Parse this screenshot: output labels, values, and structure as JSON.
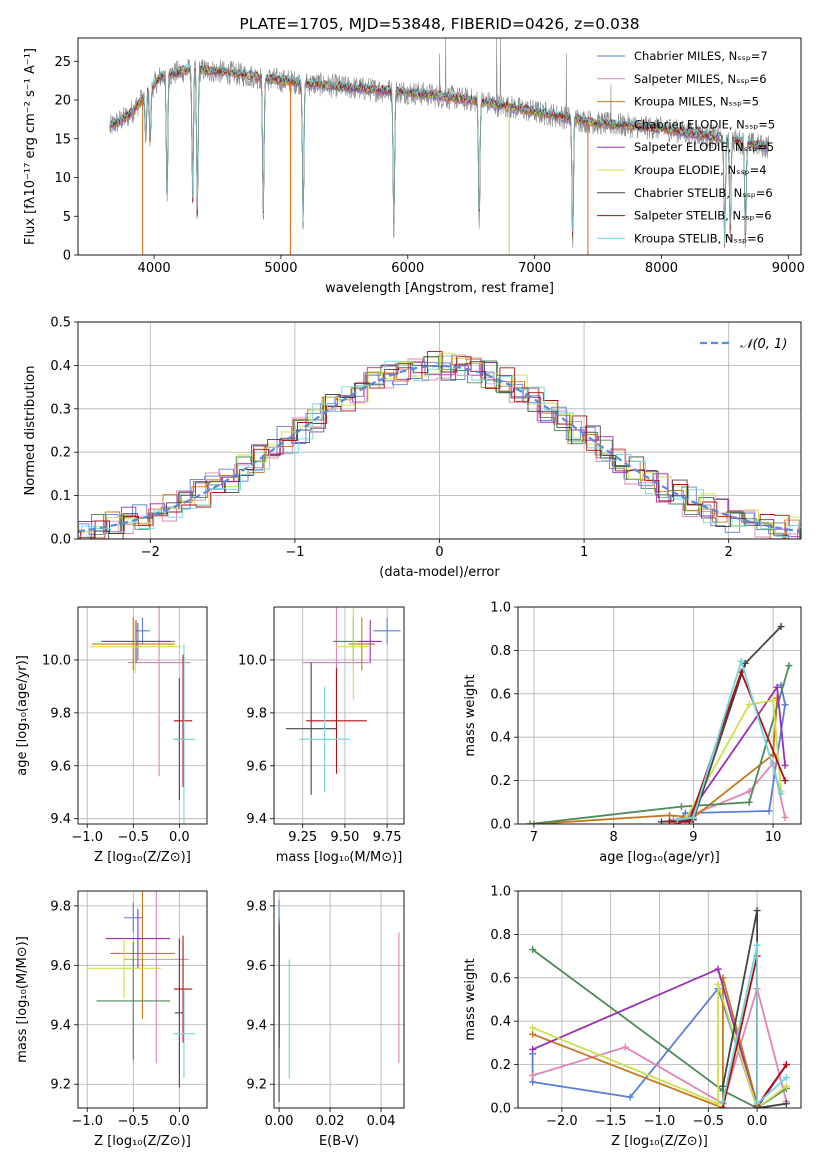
{
  "chart_data": [
    {
      "id": "spectrum",
      "type": "line",
      "title": "PLATE=1705, MJD=53848, FIBERID=0426, z=0.038",
      "xlabel": "wavelength [Angstrom, rest frame]",
      "ylabel": "Flux [fλ10⁻¹⁷ erg cm⁻² s⁻¹ A⁻¹]",
      "xlim": [
        3400,
        9100
      ],
      "ylim": [
        0,
        28
      ],
      "xticks": [
        4000,
        5000,
        6000,
        7000,
        8000,
        9000
      ],
      "yticks": [
        0,
        5,
        10,
        15,
        20,
        25
      ],
      "grid": false,
      "legend_position": "top-right",
      "continuum": [
        [
          3650,
          16.5
        ],
        [
          3800,
          18
        ],
        [
          3950,
          21
        ],
        [
          4050,
          23
        ],
        [
          4300,
          24
        ],
        [
          4600,
          23.5
        ],
        [
          5000,
          22.5
        ],
        [
          5300,
          22
        ],
        [
          5600,
          21.5
        ],
        [
          6000,
          21
        ],
        [
          6500,
          20
        ],
        [
          7000,
          18.5
        ],
        [
          7500,
          17
        ],
        [
          8000,
          16.3
        ],
        [
          8500,
          15
        ],
        [
          8800,
          14
        ]
      ],
      "dips": [
        [
          3934,
          6
        ],
        [
          3969,
          7
        ],
        [
          4102,
          16
        ],
        [
          4304,
          17
        ],
        [
          4341,
          19
        ],
        [
          4861,
          18
        ],
        [
          5175,
          18.5
        ],
        [
          5890,
          18.5
        ],
        [
          6563,
          16
        ],
        [
          7300,
          16
        ],
        [
          8498,
          13.5
        ],
        [
          8542,
          12.5
        ],
        [
          8662,
          12.8
        ]
      ],
      "spikes": [
        [
          6250,
          26
        ],
        [
          6300,
          28
        ],
        [
          6700,
          28
        ],
        [
          6730,
          28
        ],
        [
          7250,
          26
        ],
        [
          7600,
          22
        ]
      ],
      "series": [
        {
          "name": "Chabrier MILES, Nₛₛₚ=7",
          "color": "#5b7fd6"
        },
        {
          "name": "Salpeter MILES, Nₛₛₚ=6",
          "color": "#e084b8"
        },
        {
          "name": "Kroupa MILES, Nₛₛₚ=5",
          "color": "#c8781c"
        },
        {
          "name": "Chabrier ELODIE, Nₛₛₚ=5",
          "color": "#4f8a57"
        },
        {
          "name": "Salpeter ELODIE, Nₛₛₚ=5",
          "color": "#9a2fb5"
        },
        {
          "name": "Kroupa ELODIE, Nₛₛₚ=4",
          "color": "#cbe04a"
        },
        {
          "name": "Chabrier STELIB, Nₛₛₚ=6",
          "color": "#444444"
        },
        {
          "name": "Salpeter STELIB, Nₛₛₚ=6",
          "color": "#b01010"
        },
        {
          "name": "Kroupa STELIB, Nₛₛₚ=6",
          "color": "#6fd6dd"
        }
      ],
      "drops": [
        {
          "x": 3910,
          "color": "#c8781c"
        },
        {
          "x": 5075,
          "color": "#e07020"
        },
        {
          "x": 6800,
          "color": "#cbe04a"
        },
        {
          "x": 7420,
          "color": "#e07020"
        }
      ],
      "observed_data_color": "#888888"
    },
    {
      "id": "residuals",
      "type": "histogram",
      "xlabel": "(data-model)/error",
      "ylabel": "Normed distribution",
      "xlim": [
        -2.5,
        2.5
      ],
      "ylim": [
        0,
        0.5
      ],
      "xticks": [
        -2,
        -1,
        0,
        1,
        2
      ],
      "yticks": [
        0.0,
        0.1,
        0.2,
        0.3,
        0.4,
        0.5
      ],
      "grid": true,
      "legend_position": "top-right",
      "legend": "𝒩(0, 1)",
      "gaussian_color": "#5b8ad6",
      "bin_width": 0.1
    },
    {
      "id": "age-Z",
      "type": "scatter",
      "xlabel": "Z [log₁₀(Z/Z⊙)]",
      "ylabel": "age  [log₁₀(age/yr)]",
      "xlim": [
        -1.1,
        0.3
      ],
      "ylim": [
        9.38,
        10.2
      ],
      "xticks": [
        -1.0,
        -0.5,
        0.0
      ],
      "yticks": [
        9.4,
        9.6,
        9.8,
        10.0
      ],
      "grid": true,
      "points": [
        {
          "x": -0.4,
          "xerr": 0.08,
          "y": 10.11,
          "yerr": 0.05,
          "color": "#5b7fd6"
        },
        {
          "x": -0.22,
          "xerr": 0.34,
          "y": 9.99,
          "yerr": 0.43,
          "color": "#e084b8"
        },
        {
          "x": -0.5,
          "xerr": 0.45,
          "y": 10.06,
          "yerr": 0.1,
          "color": "#c8781c"
        },
        {
          "x": -0.45,
          "xerr": 0.4,
          "y": 10.07,
          "yerr": 0.07,
          "color": "#4f8a57"
        },
        {
          "x": -0.47,
          "xerr": 0.37,
          "y": 10.07,
          "yerr": 0.08,
          "color": "#9a2fb5"
        },
        {
          "x": -0.48,
          "xerr": 0.5,
          "y": 10.05,
          "yerr": 0.1,
          "color": "#cbe04a"
        },
        {
          "x": 0.0,
          "xerr": 0.03,
          "y": 9.7,
          "yerr": 0.23,
          "color": "#444444"
        },
        {
          "x": 0.04,
          "xerr": 0.1,
          "y": 9.77,
          "yerr": 0.25,
          "color": "#b01010"
        },
        {
          "x": 0.05,
          "xerr": 0.12,
          "y": 9.7,
          "yerr": 0.36,
          "color": "#6fd6dd"
        }
      ]
    },
    {
      "id": "age-mass",
      "type": "scatter",
      "xlabel": "mass [log₁₀(M/M⊙)]",
      "ylabel": "",
      "xlim": [
        9.08,
        9.85
      ],
      "ylim": [
        9.38,
        10.2
      ],
      "xticks": [
        9.25,
        9.5,
        9.75
      ],
      "yticks": [
        9.4,
        9.6,
        9.8,
        10.0
      ],
      "grid": true,
      "points": [
        {
          "x": 9.75,
          "xerr": 0.08,
          "y": 10.11,
          "yerr": 0.05,
          "color": "#5b7fd6"
        },
        {
          "x": 9.45,
          "xerr": 0.2,
          "y": 9.99,
          "yerr": 0.25,
          "color": "#e084b8"
        },
        {
          "x": 9.6,
          "xerr": 0.08,
          "y": 10.06,
          "yerr": 0.1,
          "color": "#c8781c"
        },
        {
          "x": 9.55,
          "xerr": 0.12,
          "y": 10.07,
          "yerr": 0.09,
          "color": "#4f8a57"
        },
        {
          "x": 9.65,
          "xerr": 0.07,
          "y": 10.07,
          "yerr": 0.08,
          "color": "#9a2fb5"
        },
        {
          "x": 9.55,
          "xerr": 0.1,
          "y": 10.05,
          "yerr": 0.2,
          "color": "#cbe04a"
        },
        {
          "x": 9.3,
          "xerr": 0.15,
          "y": 9.74,
          "yerr": 0.25,
          "color": "#444444"
        },
        {
          "x": 9.45,
          "xerr": 0.18,
          "y": 9.77,
          "yerr": 0.2,
          "color": "#b01010"
        },
        {
          "x": 9.38,
          "xerr": 0.15,
          "y": 9.7,
          "yerr": 0.2,
          "color": "#6fd6dd"
        }
      ]
    },
    {
      "id": "weight-age",
      "type": "line",
      "xlabel": "age  [log₁₀(age/yr)]",
      "ylabel": "mass weight",
      "xlim": [
        6.8,
        10.35
      ],
      "ylim": [
        0,
        1.0
      ],
      "xticks": [
        7,
        8,
        9,
        10
      ],
      "yticks": [
        0.0,
        0.2,
        0.4,
        0.6,
        0.8,
        1.0
      ],
      "grid": true,
      "series": [
        {
          "color": "#5b7fd6",
          "points": [
            [
              8.8,
              0.01
            ],
            [
              8.9,
              0.05
            ],
            [
              9.95,
              0.06
            ],
            [
              10.15,
              0.55
            ],
            [
              10.1,
              0.64
            ]
          ]
        },
        {
          "color": "#e084b8",
          "points": [
            [
              8.75,
              0.02
            ],
            [
              8.9,
              0.03
            ],
            [
              9.7,
              0.15
            ],
            [
              10.0,
              0.28
            ],
            [
              10.15,
              0.03
            ]
          ]
        },
        {
          "color": "#c8781c",
          "points": [
            [
              7.0,
              0.0
            ],
            [
              8.7,
              0.04
            ],
            [
              9.0,
              0.03
            ],
            [
              10.0,
              0.32
            ],
            [
              10.05,
              0.58
            ]
          ]
        },
        {
          "color": "#4f8a57",
          "points": [
            [
              6.95,
              0.0
            ],
            [
              8.85,
              0.08
            ],
            [
              9.7,
              0.1
            ],
            [
              10.2,
              0.73
            ]
          ]
        },
        {
          "color": "#9a2fb5",
          "points": [
            [
              8.8,
              0.0
            ],
            [
              8.9,
              0.02
            ],
            [
              10.05,
              0.63
            ],
            [
              10.15,
              0.27
            ]
          ]
        },
        {
          "color": "#cbe04a",
          "points": [
            [
              8.9,
              0.02
            ],
            [
              9.7,
              0.55
            ],
            [
              10.0,
              0.57
            ],
            [
              10.1,
              0.15
            ]
          ]
        },
        {
          "color": "#444444",
          "points": [
            [
              8.6,
              0.01
            ],
            [
              9.0,
              0.02
            ],
            [
              9.65,
              0.74
            ],
            [
              10.1,
              0.91
            ]
          ]
        },
        {
          "color": "#b01010",
          "points": [
            [
              8.7,
              0.01
            ],
            [
              8.95,
              0.01
            ],
            [
              9.6,
              0.7
            ],
            [
              10.15,
              0.2
            ]
          ]
        },
        {
          "color": "#6fd6dd",
          "points": [
            [
              8.8,
              0.02
            ],
            [
              9.0,
              0.03
            ],
            [
              9.6,
              0.75
            ],
            [
              10.1,
              0.14
            ]
          ]
        }
      ]
    },
    {
      "id": "mass-Z",
      "type": "scatter",
      "xlabel": "Z [log₁₀(Z/Z⊙)]",
      "ylabel": "mass [log₁₀(M/M⊙)]",
      "xlim": [
        -1.1,
        0.3
      ],
      "ylim": [
        9.12,
        9.85
      ],
      "xticks": [
        -1.0,
        -0.5,
        0.0
      ],
      "yticks": [
        9.2,
        9.4,
        9.6,
        9.8
      ],
      "grid": true,
      "points": [
        {
          "x": -0.5,
          "xerr": 0.1,
          "y": 9.76,
          "yerr": 0.05,
          "color": "#5b7fd6"
        },
        {
          "x": -0.25,
          "xerr": 0.35,
          "y": 9.62,
          "yerr": 0.35,
          "color": "#e084b8"
        },
        {
          "x": -0.4,
          "xerr": 0.35,
          "y": 9.64,
          "yerr": 0.22,
          "color": "#c8781c"
        },
        {
          "x": -0.5,
          "xerr": 0.4,
          "y": 9.48,
          "yerr": 0.2,
          "color": "#4f8a57"
        },
        {
          "x": -0.45,
          "xerr": 0.35,
          "y": 9.69,
          "yerr": 0.1,
          "color": "#9a2fb5"
        },
        {
          "x": -0.6,
          "xerr": 0.4,
          "y": 9.59,
          "yerr": 0.1,
          "color": "#cbe04a"
        },
        {
          "x": 0.0,
          "xerr": 0.05,
          "y": 9.44,
          "yerr": 0.25,
          "color": "#444444"
        },
        {
          "x": 0.04,
          "xerr": 0.1,
          "y": 9.52,
          "yerr": 0.18,
          "color": "#b01010"
        },
        {
          "x": 0.05,
          "xerr": 0.12,
          "y": 9.37,
          "yerr": 0.15,
          "color": "#6fd6dd"
        }
      ]
    },
    {
      "id": "mass-EBV",
      "type": "scatter",
      "xlabel": "E(B-V)",
      "ylabel": "",
      "xlim": [
        -0.002,
        0.049
      ],
      "ylim": [
        9.12,
        9.85
      ],
      "xticks": [
        0.0,
        0.02,
        0.04
      ],
      "yticks": [
        9.2,
        9.4,
        9.6,
        9.8
      ],
      "grid": true,
      "points": [
        {
          "x": 0.0,
          "y": 9.62,
          "yerr": 0.2,
          "color": "#5b7fd6"
        },
        {
          "x": 0.0,
          "y": 9.54,
          "yerr": 0.22,
          "color": "#4f8a57"
        },
        {
          "x": 0.0,
          "y": 9.55,
          "yerr": 0.2,
          "color": "#9a2fb5"
        },
        {
          "x": 0.0,
          "y": 9.52,
          "yerr": 0.2,
          "color": "#b01010"
        },
        {
          "x": 0.0,
          "y": 9.44,
          "yerr": 0.3,
          "color": "#444444"
        },
        {
          "x": 0.004,
          "y": 9.42,
          "yerr": 0.2,
          "color": "#6fd6dd"
        },
        {
          "x": 0.047,
          "y": 9.49,
          "yerr": 0.22,
          "color": "#e084b8"
        }
      ]
    },
    {
      "id": "weight-Z",
      "type": "line",
      "xlabel": "Z [log₁₀(Z/Z⊙)]",
      "ylabel": "mass weight",
      "xlim": [
        -2.45,
        0.45
      ],
      "ylim": [
        0,
        1.0
      ],
      "xticks": [
        -2.0,
        -1.5,
        -1.0,
        -0.5,
        0.0
      ],
      "yticks": [
        0.0,
        0.2,
        0.4,
        0.6,
        0.8,
        1.0
      ],
      "grid": true,
      "series": [
        {
          "color": "#5b7fd6",
          "points": [
            [
              -2.3,
              0.25
            ],
            [
              -2.3,
              0.12
            ],
            [
              -1.3,
              0.05
            ],
            [
              -0.4,
              0.55
            ],
            [
              0.0,
              0.0
            ]
          ]
        },
        {
          "color": "#e084b8",
          "points": [
            [
              -2.3,
              0.15
            ],
            [
              -1.35,
              0.28
            ],
            [
              -0.35,
              0.02
            ],
            [
              0.0,
              0.55
            ],
            [
              0.3,
              0.03
            ]
          ]
        },
        {
          "color": "#c8781c",
          "points": [
            [
              -2.3,
              0.34
            ],
            [
              -0.35,
              0.0
            ],
            [
              -0.35,
              0.6
            ],
            [
              0.0,
              0.02
            ]
          ]
        },
        {
          "color": "#4f8a57",
          "points": [
            [
              -2.3,
              0.73
            ],
            [
              -0.35,
              0.08
            ],
            [
              0.0,
              0.0
            ],
            [
              0.3,
              0.09
            ]
          ]
        },
        {
          "color": "#9a2fb5",
          "points": [
            [
              -2.3,
              0.27
            ],
            [
              -0.4,
              0.64
            ],
            [
              0.0,
              0.0
            ],
            [
              0.3,
              0.2
            ]
          ]
        },
        {
          "color": "#cbe04a",
          "points": [
            [
              -2.3,
              0.37
            ],
            [
              -0.4,
              0.02
            ],
            [
              -0.4,
              0.57
            ],
            [
              0.0,
              0.0
            ],
            [
              0.3,
              0.1
            ]
          ]
        },
        {
          "color": "#444444",
          "points": [
            [
              -0.35,
              0.1
            ],
            [
              0.0,
              0.91
            ],
            [
              0.0,
              0.0
            ],
            [
              0.3,
              0.02
            ]
          ]
        },
        {
          "color": "#b01010",
          "points": [
            [
              -0.35,
              0.0
            ],
            [
              0.0,
              0.7
            ],
            [
              0.0,
              0.01
            ],
            [
              0.3,
              0.2
            ]
          ]
        },
        {
          "color": "#6fd6dd",
          "points": [
            [
              -0.35,
              0.03
            ],
            [
              0.0,
              0.75
            ],
            [
              0.0,
              0.02
            ],
            [
              0.3,
              0.14
            ]
          ]
        }
      ]
    }
  ]
}
